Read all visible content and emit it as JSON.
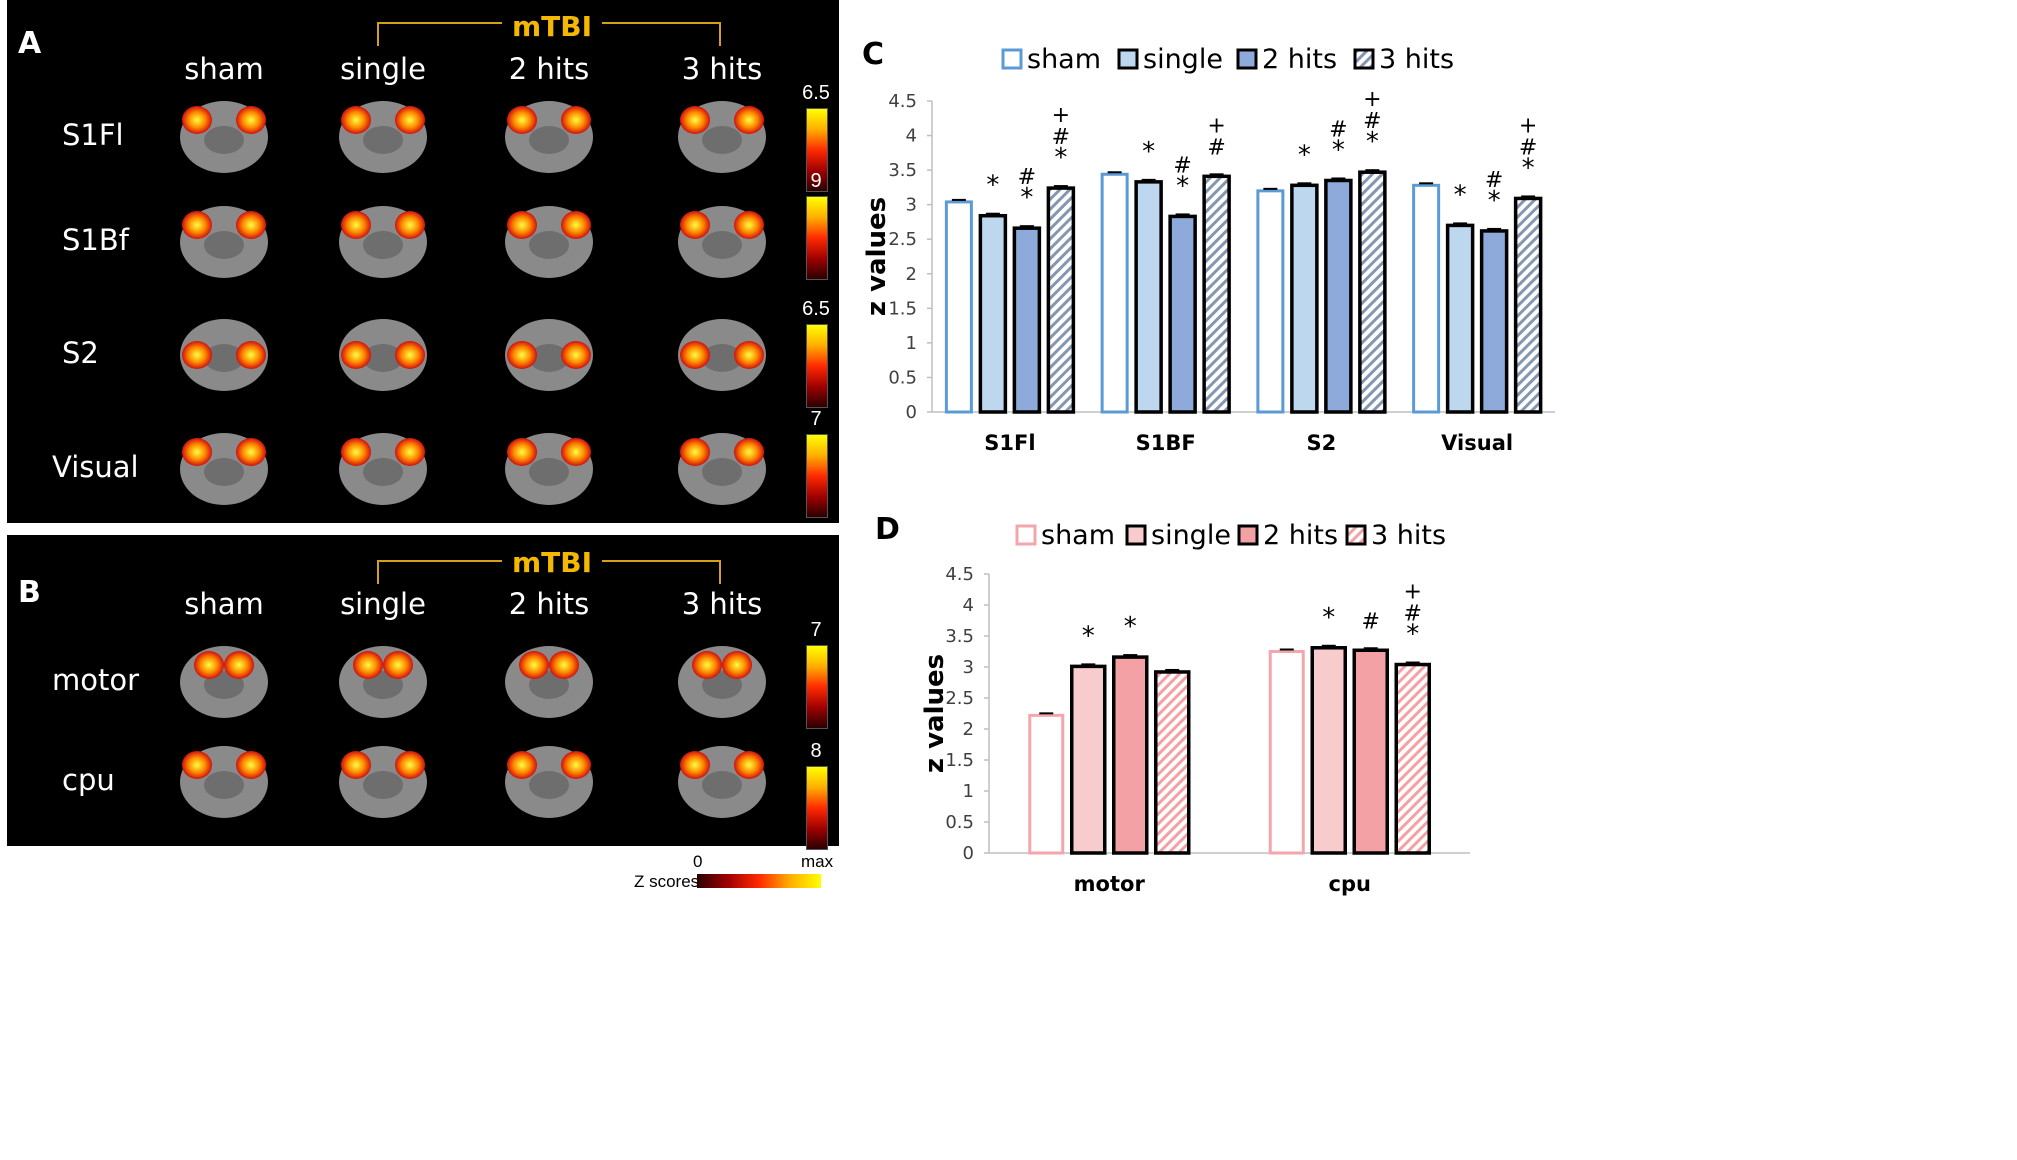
{
  "panels": {
    "a": "A",
    "b": "B",
    "c": "C",
    "d": "D"
  },
  "panel_a": {
    "mtbi": "mTBI",
    "columns": [
      "sham",
      "single",
      "2 hits",
      "3 hits"
    ],
    "rows": [
      "S1Fl",
      "S1Bf",
      "S2",
      "Visual"
    ],
    "colorbar_max": [
      "6.5",
      "9",
      "6.5",
      "7"
    ]
  },
  "panel_b": {
    "mtbi": "mTBI",
    "columns": [
      "sham",
      "single",
      "2 hits",
      "3 hits"
    ],
    "rows": [
      "motor",
      "cpu"
    ],
    "colorbar_max": [
      "7",
      "8"
    ]
  },
  "z_scale": {
    "label": "Z scores",
    "min": "0",
    "max": "max"
  },
  "chart_data": [
    {
      "type": "bar",
      "title": "",
      "xlabel": "",
      "ylabel": "z values",
      "ylim": [
        0,
        4.5
      ],
      "yticks": [
        "0",
        "0.5",
        "1",
        "1.5",
        "2",
        "2.5",
        "3",
        "3.5",
        "4",
        "4.5"
      ],
      "categories": [
        "S1Fl",
        "S1BF",
        "S2",
        "Visual"
      ],
      "legend": [
        "sham",
        "single",
        "2 hits",
        "3 hits"
      ],
      "series": [
        {
          "name": "sham",
          "values": [
            3.04,
            3.44,
            3.2,
            3.28
          ],
          "color": "#5b9bd5"
        },
        {
          "name": "single",
          "values": [
            2.84,
            3.33,
            3.28,
            2.7
          ],
          "color": "#bdd7ee"
        },
        {
          "name": "2 hits",
          "values": [
            2.66,
            2.83,
            3.35,
            2.62
          ],
          "color": "#8eaadb"
        },
        {
          "name": "3 hits",
          "values": [
            3.24,
            3.41,
            3.47,
            3.09
          ],
          "color": "#8496b0"
        }
      ],
      "annotations": [
        [
          "",
          "*",
          "*\n#",
          "*\n#\n+"
        ],
        [
          "",
          "*",
          "*\n#",
          "#\n+"
        ],
        [
          "",
          "*",
          "*\n#",
          "*\n#\n+"
        ],
        [
          "",
          "*",
          "*\n#",
          "*\n#\n+"
        ]
      ]
    },
    {
      "type": "bar",
      "title": "",
      "xlabel": "",
      "ylabel": "z values",
      "ylim": [
        0,
        4.5
      ],
      "yticks": [
        "0",
        "0.5",
        "1",
        "1.5",
        "2",
        "2.5",
        "3",
        "3.5",
        "4",
        "4.5"
      ],
      "categories": [
        "motor",
        "cpu"
      ],
      "legend": [
        "sham",
        "single",
        "2 hits",
        "3 hits"
      ],
      "series": [
        {
          "name": "sham",
          "values": [
            2.22,
            3.25
          ],
          "color": "#f4a6ad"
        },
        {
          "name": "single",
          "values": [
            3.01,
            3.31
          ],
          "color": "#f8cbcd"
        },
        {
          "name": "2 hits",
          "values": [
            3.16,
            3.27
          ],
          "color": "#f4a1a5"
        },
        {
          "name": "3 hits",
          "values": [
            2.92,
            3.04
          ],
          "color": "#f4a1a5"
        }
      ],
      "annotations": [
        [
          "",
          "*",
          "*",
          ""
        ],
        [
          "",
          "*",
          "#",
          "*\n#\n+"
        ]
      ]
    }
  ]
}
